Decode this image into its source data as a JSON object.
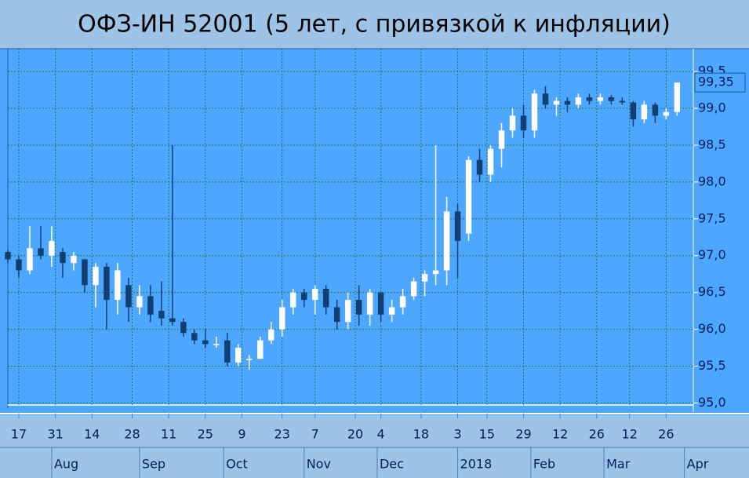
{
  "chart_data": {
    "type": "candlestick",
    "title": "ОФЗ-ИН 52001 (5 лет, с привязкой к инфляции)",
    "x": [
      0,
      3,
      6,
      9,
      12,
      15,
      18,
      21,
      24,
      27,
      30,
      33,
      36,
      39,
      42,
      45,
      48,
      51,
      54,
      57,
      60,
      63,
      66,
      69,
      72,
      75,
      78,
      81,
      84,
      87,
      90,
      93,
      96,
      99,
      102,
      105,
      108,
      111,
      114,
      117,
      120,
      123,
      126,
      129,
      132,
      135,
      138,
      141,
      144,
      147,
      150,
      153,
      156,
      159,
      162,
      165,
      168,
      171,
      174,
      177,
      180,
      183
    ],
    "open": [
      97.05,
      96.95,
      96.8,
      97.1,
      97.0,
      97.05,
      96.9,
      96.95,
      96.6,
      96.85,
      96.4,
      96.6,
      96.3,
      96.45,
      96.25,
      96.15,
      96.1,
      95.95,
      95.85,
      95.8,
      95.85,
      95.55,
      95.6,
      95.6,
      95.85,
      96.0,
      96.3,
      96.5,
      96.4,
      96.55,
      96.3,
      96.1,
      96.4,
      96.2,
      96.5,
      96.2,
      96.3,
      96.45,
      96.65,
      96.75,
      96.8,
      97.6,
      97.3,
      98.3,
      98.1,
      98.45,
      98.7,
      98.9,
      98.7,
      99.2,
      99.05,
      99.1,
      99.05,
      99.15,
      99.1,
      99.15,
      99.1,
      99.08,
      98.85,
      99.05,
      98.9,
      98.95
    ],
    "high": [
      97.08,
      97.0,
      97.4,
      97.4,
      97.4,
      97.1,
      97.05,
      96.95,
      96.9,
      96.9,
      96.9,
      96.7,
      96.6,
      96.6,
      96.65,
      98.5,
      96.15,
      96.0,
      96.0,
      95.9,
      95.95,
      95.8,
      95.65,
      95.9,
      96.1,
      96.4,
      96.55,
      96.55,
      96.6,
      96.6,
      96.4,
      96.5,
      96.6,
      96.55,
      96.5,
      96.4,
      96.55,
      96.7,
      96.8,
      98.5,
      97.8,
      97.7,
      98.35,
      98.45,
      98.5,
      98.8,
      99.0,
      99.05,
      99.25,
      99.3,
      99.15,
      99.15,
      99.2,
      99.2,
      99.2,
      99.18,
      99.15,
      99.1,
      99.1,
      99.08,
      99.0,
      99.35
    ],
    "low": [
      96.9,
      96.7,
      96.75,
      96.95,
      96.85,
      96.7,
      96.8,
      96.5,
      96.3,
      96.0,
      96.2,
      96.1,
      96.2,
      96.1,
      96.05,
      96.05,
      95.9,
      95.8,
      95.75,
      95.75,
      95.5,
      95.5,
      95.45,
      95.6,
      95.8,
      95.9,
      96.2,
      96.3,
      96.2,
      96.2,
      96.0,
      96.0,
      96.05,
      96.05,
      96.1,
      96.1,
      96.2,
      96.4,
      96.45,
      96.6,
      96.6,
      96.7,
      97.2,
      98.0,
      98.0,
      98.2,
      98.6,
      98.6,
      98.6,
      99.0,
      98.9,
      98.95,
      99.0,
      99.05,
      99.05,
      99.05,
      99.05,
      98.75,
      98.8,
      98.8,
      98.85,
      98.9
    ],
    "close": [
      96.95,
      96.8,
      97.1,
      97.0,
      97.2,
      96.9,
      97.0,
      96.6,
      96.85,
      96.4,
      96.8,
      96.3,
      96.45,
      96.2,
      96.15,
      96.1,
      95.95,
      95.85,
      95.8,
      95.8,
      95.55,
      95.75,
      95.6,
      95.85,
      96.0,
      96.3,
      96.5,
      96.4,
      96.55,
      96.3,
      96.1,
      96.4,
      96.2,
      96.5,
      96.2,
      96.3,
      96.45,
      96.65,
      96.75,
      96.8,
      97.6,
      97.2,
      98.3,
      98.1,
      98.45,
      98.7,
      98.9,
      98.7,
      99.2,
      99.05,
      99.1,
      99.05,
      99.15,
      99.1,
      99.15,
      99.1,
      99.08,
      98.85,
      99.05,
      98.9,
      98.95,
      99.35
    ],
    "up_color": "#ffffff",
    "down_color": "#123f73",
    "xlim": [
      0,
      187
    ],
    "ylim": [
      94.93,
      99.81
    ],
    "yticks": [
      {
        "value": 95,
        "label": "95,0"
      },
      {
        "value": 95.5,
        "label": "95,5"
      },
      {
        "value": 96,
        "label": "96,0"
      },
      {
        "value": 96.5,
        "label": "96,5"
      },
      {
        "value": 97,
        "label": "97,0"
      },
      {
        "value": 97.5,
        "label": "97,5"
      },
      {
        "value": 98,
        "label": "98,0"
      },
      {
        "value": 98.5,
        "label": "98,5"
      },
      {
        "value": 99,
        "label": "99,0"
      },
      {
        "value": 99.5,
        "label": "99,5"
      }
    ],
    "xticks": [
      {
        "value": 3,
        "label": "17"
      },
      {
        "value": 13,
        "label": "31"
      },
      {
        "value": 23,
        "label": "14"
      },
      {
        "value": 34,
        "label": "28"
      },
      {
        "value": 44,
        "label": "11"
      },
      {
        "value": 54,
        "label": "25"
      },
      {
        "value": 64,
        "label": "9"
      },
      {
        "value": 75,
        "label": "23"
      },
      {
        "value": 84,
        "label": "7"
      },
      {
        "value": 95,
        "label": "20"
      },
      {
        "value": 102,
        "label": "4"
      },
      {
        "value": 113,
        "label": "18"
      },
      {
        "value": 123,
        "label": "3"
      },
      {
        "value": 131,
        "label": "15"
      },
      {
        "value": 141,
        "label": "29"
      },
      {
        "value": 151,
        "label": "12"
      },
      {
        "value": 161,
        "label": "26"
      },
      {
        "value": 170,
        "label": "12"
      },
      {
        "value": 180,
        "label": "26"
      }
    ],
    "month_labels": [
      {
        "value": 12,
        "label": "Aug"
      },
      {
        "value": 36,
        "label": "Sep"
      },
      {
        "value": 59,
        "label": "Oct"
      },
      {
        "value": 81,
        "label": "Nov"
      },
      {
        "value": 101,
        "label": "Dec"
      },
      {
        "value": 123,
        "label": "2018"
      },
      {
        "value": 143,
        "label": "Feb"
      },
      {
        "value": 163,
        "label": "Mar"
      },
      {
        "value": 185,
        "label": "Apr"
      }
    ],
    "last_price": {
      "value": 99.35,
      "label": "99,35"
    },
    "grid": true
  }
}
